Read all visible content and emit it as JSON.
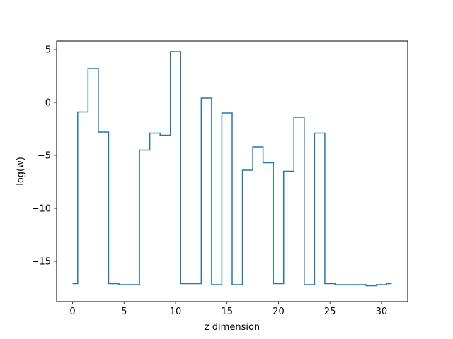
{
  "chart_data": {
    "type": "line",
    "drawstyle": "steps-mid",
    "title": "",
    "xlabel": "z dimension",
    "ylabel": "log(w)",
    "xlim": [
      -1.55,
      32.55
    ],
    "ylim": [
      -18.8,
      5.8
    ],
    "xticks": [
      0,
      5,
      10,
      15,
      20,
      25,
      30
    ],
    "yticks": [
      5,
      0,
      -5,
      -10,
      -15
    ],
    "ytick_labels": [
      "5",
      "0",
      "−5",
      "−10",
      "−15"
    ],
    "grid": false,
    "line_color": "#1f77b4",
    "series": [
      {
        "x": [
          0,
          1,
          2,
          3,
          4,
          5,
          6,
          7,
          8,
          9,
          10,
          11,
          12,
          13,
          14,
          15,
          16,
          17,
          18,
          19,
          20,
          21,
          22,
          23,
          24,
          25,
          26,
          27,
          28,
          29,
          30,
          31
        ],
        "values": [
          -17.1,
          -0.9,
          3.2,
          -2.8,
          -17.1,
          -17.2,
          -17.2,
          -4.5,
          -2.9,
          -3.1,
          4.8,
          -17.1,
          -17.1,
          0.4,
          -17.2,
          -1.0,
          -17.2,
          -6.4,
          -4.2,
          -5.7,
          -17.1,
          -6.5,
          -1.4,
          -17.2,
          -2.9,
          -17.1,
          -17.2,
          -17.2,
          -17.2,
          -17.3,
          -17.2,
          -17.1
        ]
      }
    ]
  }
}
